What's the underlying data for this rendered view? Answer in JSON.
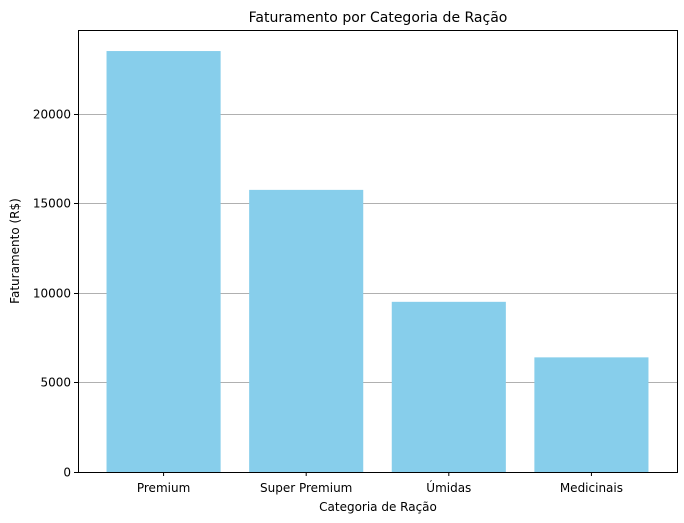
{
  "chart_data": {
    "type": "bar",
    "title": "Faturamento por Categoria de Ração",
    "xlabel": "Categoria de Ração",
    "ylabel": "Faturamento (R$)",
    "categories": [
      "Premium",
      "Super Premium",
      "Úmidas",
      "Medicinais"
    ],
    "values": [
      23500,
      15750,
      9500,
      6400
    ],
    "ylim": [
      0,
      24675
    ],
    "yticks": [
      0,
      5000,
      10000,
      15000,
      20000
    ],
    "grid": "y",
    "bar_color": "#87CEEB",
    "grid_color": "#b0b0b0"
  }
}
